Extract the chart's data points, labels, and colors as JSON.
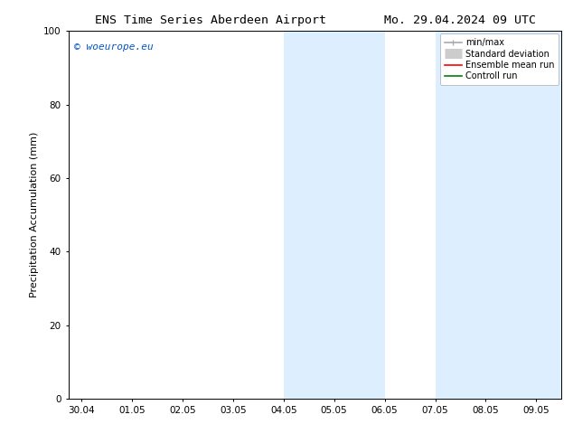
{
  "title_left": "ENS Time Series Aberdeen Airport",
  "title_right": "Mo. 29.04.2024 09 UTC",
  "ylabel": "Precipitation Accumulation (mm)",
  "watermark": "© woeurope.eu",
  "watermark_color": "#0055cc",
  "ylim": [
    0,
    100
  ],
  "yticks": [
    0,
    20,
    40,
    60,
    80,
    100
  ],
  "shade_bands": [
    {
      "x_start": 4.0,
      "x_end": 6.0
    },
    {
      "x_start": 7.0,
      "x_end": 9.5
    }
  ],
  "shade_color": "#ddeeff",
  "xtick_labels": [
    "30.04",
    "01.05",
    "02.05",
    "03.05",
    "04.05",
    "05.05",
    "06.05",
    "07.05",
    "08.05",
    "09.05"
  ],
  "xtick_positions": [
    0,
    1,
    2,
    3,
    4,
    5,
    6,
    7,
    8,
    9
  ],
  "xlim": [
    -0.25,
    9.5
  ],
  "background_color": "#ffffff",
  "legend_items": [
    {
      "label": "min/max",
      "color": "#aaaaaa",
      "linewidth": 1.2,
      "linestyle": "-",
      "type": "line_with_caps"
    },
    {
      "label": "Standard deviation",
      "color": "#cccccc",
      "linewidth": 8,
      "linestyle": "-",
      "type": "thick_line"
    },
    {
      "label": "Ensemble mean run",
      "color": "#ff0000",
      "linewidth": 1.2,
      "linestyle": "-",
      "type": "line"
    },
    {
      "label": "Controll run",
      "color": "#008000",
      "linewidth": 1.2,
      "linestyle": "-",
      "type": "line"
    }
  ],
  "font_size_title": 9.5,
  "font_size_axis": 8,
  "font_size_tick": 7.5,
  "font_size_legend": 7,
  "font_size_watermark": 8
}
